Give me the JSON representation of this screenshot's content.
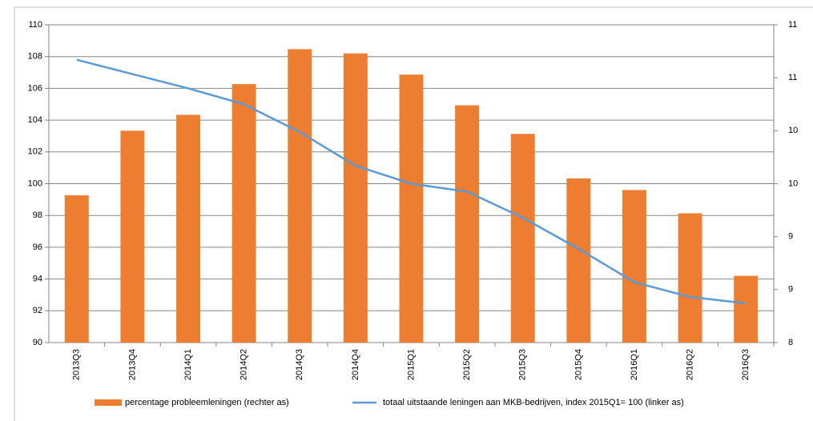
{
  "chart_data": {
    "type": "bar",
    "categories": [
      "2013Q3",
      "2013Q4",
      "2014Q1",
      "2014Q2",
      "2014Q3",
      "2014Q4",
      "2015Q1",
      "2015Q2",
      "2015Q3",
      "2015Q4",
      "2016Q1",
      "2016Q2",
      "2016Q3"
    ],
    "series": [
      {
        "name": "percentage probleemleningen (rechter as)",
        "type": "bar",
        "axis": "y2",
        "color": "#ED7D31",
        "values": [
          9.39,
          10.0,
          10.15,
          10.44,
          10.77,
          10.73,
          10.53,
          10.24,
          9.97,
          9.55,
          9.44,
          9.22,
          8.63
        ]
      },
      {
        "name": "totaal uitstaande leningen aan MKB-bedrijven, index 2015Q1= 100 (linker as)",
        "type": "line",
        "axis": "y",
        "color": "#5B9BD5",
        "values": [
          107.8,
          106.9,
          106.0,
          105.0,
          103.25,
          101.13,
          100,
          99.5,
          97.86,
          95.9,
          93.8,
          92.87,
          92.47
        ]
      }
    ],
    "ylim": [
      90,
      110
    ],
    "yticks": [
      90,
      92,
      94,
      96,
      98,
      100,
      102,
      104,
      106,
      108,
      110
    ],
    "y2lim": [
      8,
      11
    ],
    "y2ticks": [
      8,
      {
        "value": 8.5,
        "label": "9"
      },
      9,
      {
        "value": 9.5,
        "label": "10"
      },
      10,
      {
        "value": 10.5,
        "label": "11"
      },
      11
    ],
    "grid": true,
    "legend": "bottom"
  }
}
